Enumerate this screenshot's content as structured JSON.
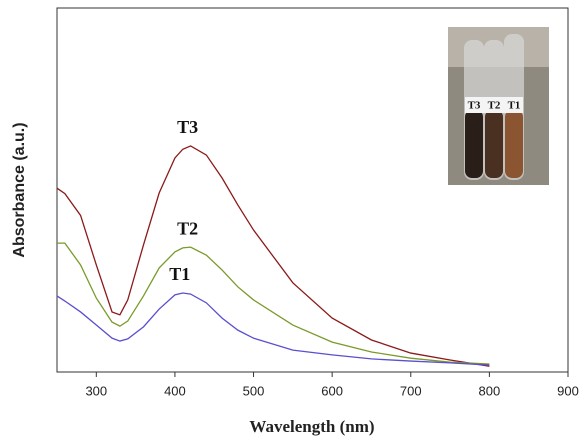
{
  "chart_data": {
    "type": "line",
    "x_label": "Wavelength (nm)",
    "y_label": "Absorbance (a.u.)",
    "x": [
      250,
      260,
      280,
      300,
      320,
      330,
      340,
      360,
      380,
      400,
      410,
      420,
      440,
      460,
      480,
      500,
      550,
      600,
      650,
      700,
      750,
      800
    ],
    "series": [
      {
        "name": "T3",
        "color": "#8b1a1a",
        "values": [
          0.505,
          0.49,
          0.43,
          0.294,
          0.165,
          0.157,
          0.198,
          0.349,
          0.492,
          0.588,
          0.612,
          0.621,
          0.596,
          0.533,
          0.459,
          0.39,
          0.245,
          0.148,
          0.088,
          0.052,
          0.033,
          0.016
        ]
      },
      {
        "name": "T2",
        "color": "#7a9a2a",
        "values": [
          0.354,
          0.354,
          0.294,
          0.203,
          0.137,
          0.126,
          0.14,
          0.209,
          0.286,
          0.33,
          0.341,
          0.343,
          0.321,
          0.28,
          0.234,
          0.198,
          0.129,
          0.082,
          0.055,
          0.038,
          0.027,
          0.022
        ]
      },
      {
        "name": "T1",
        "color": "#5a4fcf",
        "values": [
          0.209,
          0.195,
          0.165,
          0.129,
          0.093,
          0.085,
          0.091,
          0.124,
          0.173,
          0.212,
          0.217,
          0.214,
          0.19,
          0.148,
          0.115,
          0.093,
          0.06,
          0.047,
          0.036,
          0.03,
          0.025,
          0.019
        ]
      }
    ],
    "xlim": [
      250,
      900
    ],
    "xticks": [
      300,
      400,
      500,
      600,
      700,
      800,
      900
    ],
    "ylim": [
      0,
      1
    ],
    "inset_labels": [
      "T3",
      "T2",
      "T1"
    ]
  }
}
